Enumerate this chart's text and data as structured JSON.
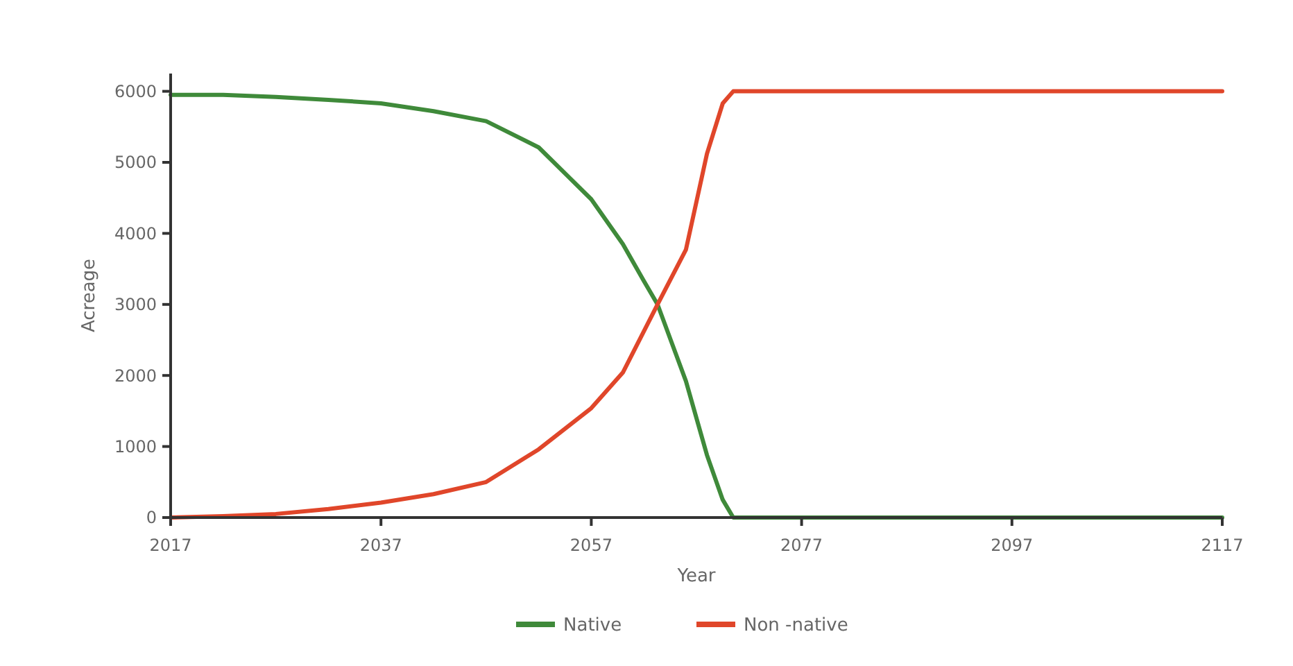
{
  "chart_data": {
    "type": "line",
    "xlabel": "Year",
    "ylabel": "Acreage",
    "xlim": [
      2017,
      2117
    ],
    "xticks": [
      2017,
      2037,
      2057,
      2077,
      2097,
      2117
    ],
    "ylim": [
      0,
      6250
    ],
    "yticks": [
      0,
      1000,
      2000,
      3000,
      4000,
      5000,
      6000
    ],
    "grid": false,
    "legend": "bottom",
    "marker": "none",
    "line_style": "solid",
    "series": [
      {
        "name": "Native",
        "color": "#3f8a3a",
        "x": [
          2017,
          2022,
          2027,
          2032,
          2037,
          2042,
          2047,
          2052,
          2057,
          2060,
          2062,
          2063.3,
          2066,
          2068,
          2069.5,
          2070.5,
          2080,
          2100,
          2117
        ],
        "values": [
          5950,
          5950,
          5920,
          5880,
          5830,
          5720,
          5580,
          5210,
          4480,
          3850,
          3330,
          3000,
          1920,
          880,
          250,
          0,
          0,
          0,
          0
        ]
      },
      {
        "name": "Non -native",
        "color": "#e0462a",
        "x": [
          2017,
          2022,
          2027,
          2032,
          2037,
          2042,
          2047,
          2052,
          2057,
          2060,
          2063.3,
          2066,
          2068,
          2069.5,
          2070.5,
          2080,
          2100,
          2117
        ],
        "values": [
          0,
          20,
          50,
          120,
          210,
          330,
          500,
          960,
          1540,
          2040,
          3000,
          3770,
          5120,
          5830,
          6000,
          6000,
          6000,
          6000
        ]
      }
    ]
  }
}
